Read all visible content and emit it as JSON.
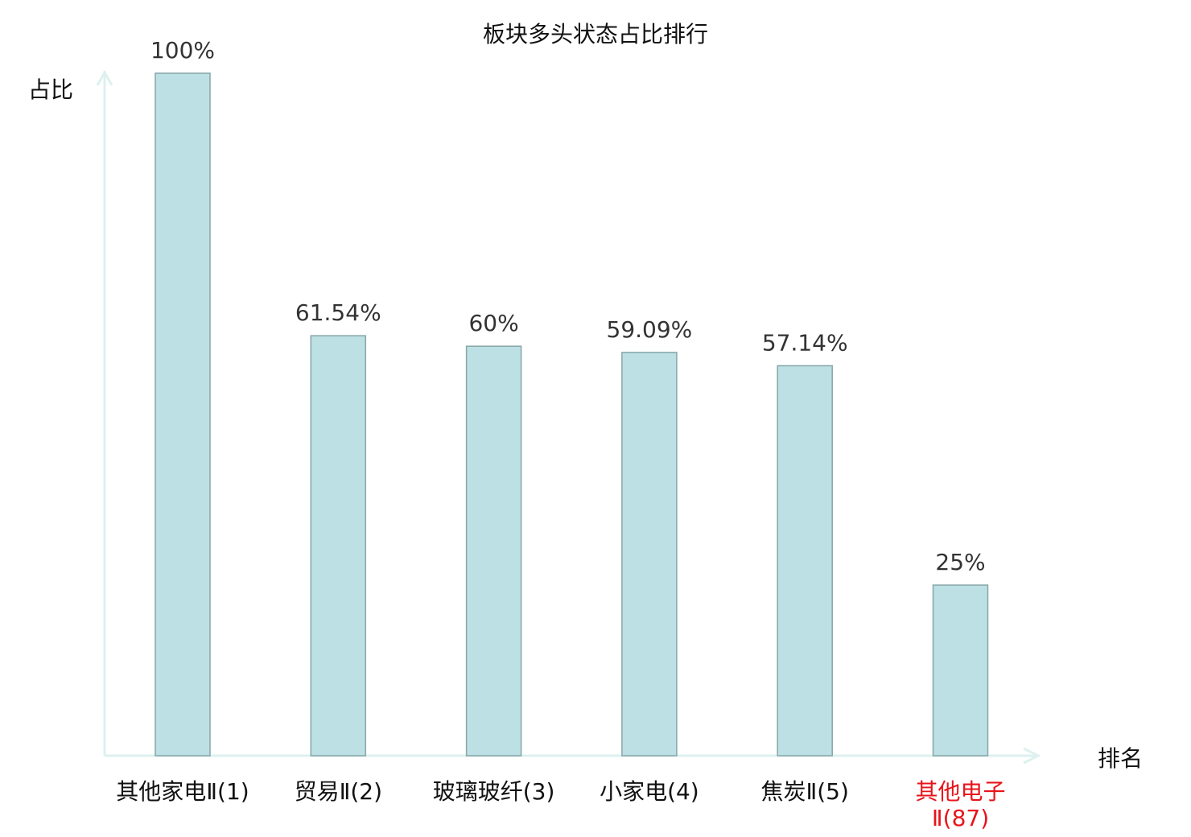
{
  "chart_data": {
    "type": "bar",
    "title": "板块多头状态占比排行",
    "xlabel": "排名",
    "ylabel": "占比",
    "categories": [
      "其他家电Ⅱ(1)",
      "贸易Ⅱ(2)",
      "玻璃玻纤(3)",
      "小家电(4)",
      "焦炭Ⅱ(5)",
      "其他电子Ⅱ(87)"
    ],
    "values": [
      100,
      61.54,
      60,
      59.09,
      57.14,
      25
    ],
    "value_labels": [
      "100%",
      "61.54%",
      "60%",
      "59.09%",
      "57.14%",
      "25%"
    ],
    "highlighted_category": "其他电子Ⅱ(87)",
    "ylim": [
      0,
      100
    ],
    "grid": false,
    "colors": {
      "bar_fill": "#bce0e3",
      "bar_stroke": "#86a6a8",
      "axis": "#ddf1ef",
      "highlight": "#e8141b",
      "label": "#111111"
    }
  }
}
